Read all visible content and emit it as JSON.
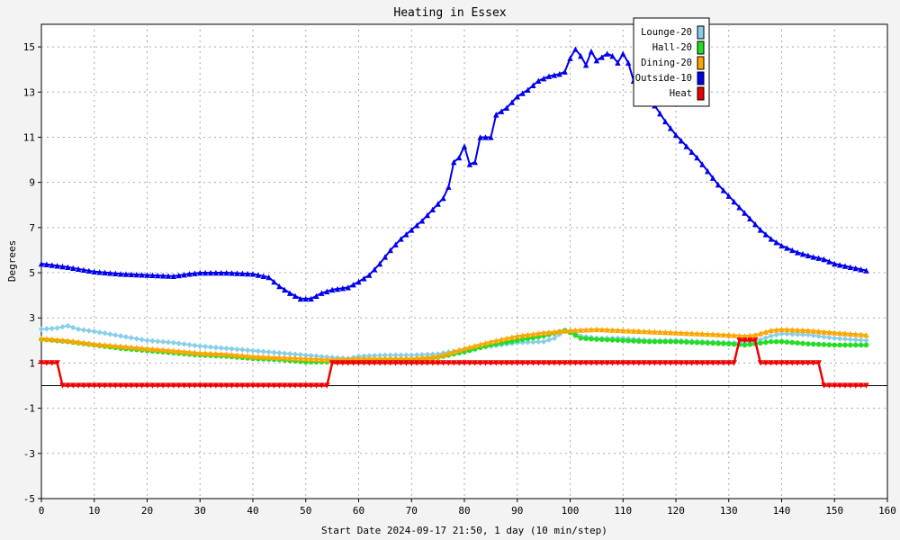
{
  "chart_data": {
    "type": "line",
    "title": "Heating in Essex",
    "xlabel": "Start Date 2024-09-17 21:50, 1 day (10 min/step)",
    "ylabel": "Degrees",
    "xlim": [
      0,
      160
    ],
    "ylim": [
      -5,
      16
    ],
    "x_ticks": [
      0,
      10,
      20,
      30,
      40,
      50,
      60,
      70,
      80,
      90,
      100,
      110,
      120,
      130,
      140,
      150,
      160
    ],
    "y_ticks": [
      -5,
      -3,
      -1,
      1,
      3,
      5,
      7,
      9,
      11,
      13,
      15
    ],
    "grid": true,
    "legend_position": "top-right",
    "series": [
      {
        "name": "Lounge-20",
        "color": "#87ceeb",
        "marker": "diamond",
        "points": [
          [
            0,
            2.5
          ],
          [
            3,
            2.55
          ],
          [
            5,
            2.65
          ],
          [
            7,
            2.5
          ],
          [
            10,
            2.4
          ],
          [
            15,
            2.2
          ],
          [
            20,
            2.0
          ],
          [
            25,
            1.9
          ],
          [
            30,
            1.75
          ],
          [
            35,
            1.65
          ],
          [
            40,
            1.55
          ],
          [
            45,
            1.45
          ],
          [
            50,
            1.35
          ],
          [
            55,
            1.25
          ],
          [
            58,
            1.2
          ],
          [
            60,
            1.3
          ],
          [
            65,
            1.35
          ],
          [
            70,
            1.35
          ],
          [
            75,
            1.4
          ],
          [
            80,
            1.6
          ],
          [
            85,
            1.75
          ],
          [
            90,
            1.9
          ],
          [
            95,
            1.95
          ],
          [
            97,
            2.1
          ],
          [
            99,
            2.45
          ],
          [
            100,
            2.4
          ],
          [
            102,
            2.2
          ],
          [
            105,
            2.1
          ],
          [
            110,
            2.1
          ],
          [
            115,
            2.0
          ],
          [
            120,
            2.0
          ],
          [
            125,
            1.95
          ],
          [
            130,
            1.9
          ],
          [
            133,
            1.9
          ],
          [
            135,
            1.95
          ],
          [
            138,
            2.2
          ],
          [
            140,
            2.3
          ],
          [
            145,
            2.25
          ],
          [
            150,
            2.1
          ],
          [
            156,
            2.0
          ]
        ]
      },
      {
        "name": "Hall-20",
        "color": "#22dd22",
        "marker": "circle",
        "points": [
          [
            0,
            2.05
          ],
          [
            5,
            1.95
          ],
          [
            10,
            1.8
          ],
          [
            15,
            1.65
          ],
          [
            20,
            1.55
          ],
          [
            25,
            1.45
          ],
          [
            30,
            1.35
          ],
          [
            35,
            1.3
          ],
          [
            40,
            1.2
          ],
          [
            45,
            1.15
          ],
          [
            50,
            1.05
          ],
          [
            55,
            1.05
          ],
          [
            60,
            1.1
          ],
          [
            65,
            1.15
          ],
          [
            70,
            1.15
          ],
          [
            75,
            1.25
          ],
          [
            80,
            1.5
          ],
          [
            85,
            1.8
          ],
          [
            90,
            2.0
          ],
          [
            95,
            2.2
          ],
          [
            99,
            2.45
          ],
          [
            100,
            2.35
          ],
          [
            102,
            2.1
          ],
          [
            105,
            2.05
          ],
          [
            110,
            2.0
          ],
          [
            115,
            1.95
          ],
          [
            120,
            1.95
          ],
          [
            125,
            1.9
          ],
          [
            130,
            1.85
          ],
          [
            133,
            1.8
          ],
          [
            135,
            1.85
          ],
          [
            138,
            1.95
          ],
          [
            140,
            1.95
          ],
          [
            145,
            1.85
          ],
          [
            150,
            1.8
          ],
          [
            156,
            1.8
          ]
        ]
      },
      {
        "name": "Dining-20",
        "color": "#ffa500",
        "marker": "triangle-up",
        "points": [
          [
            0,
            2.1
          ],
          [
            5,
            2.0
          ],
          [
            10,
            1.85
          ],
          [
            15,
            1.75
          ],
          [
            20,
            1.65
          ],
          [
            25,
            1.55
          ],
          [
            30,
            1.45
          ],
          [
            35,
            1.4
          ],
          [
            40,
            1.3
          ],
          [
            45,
            1.25
          ],
          [
            50,
            1.2
          ],
          [
            55,
            1.15
          ],
          [
            60,
            1.2
          ],
          [
            65,
            1.2
          ],
          [
            70,
            1.2
          ],
          [
            75,
            1.3
          ],
          [
            80,
            1.65
          ],
          [
            85,
            1.95
          ],
          [
            90,
            2.2
          ],
          [
            95,
            2.35
          ],
          [
            100,
            2.45
          ],
          [
            105,
            2.5
          ],
          [
            110,
            2.45
          ],
          [
            115,
            2.4
          ],
          [
            120,
            2.35
          ],
          [
            125,
            2.3
          ],
          [
            130,
            2.25
          ],
          [
            133,
            2.2
          ],
          [
            135,
            2.25
          ],
          [
            138,
            2.45
          ],
          [
            140,
            2.5
          ],
          [
            145,
            2.45
          ],
          [
            150,
            2.35
          ],
          [
            156,
            2.25
          ]
        ]
      },
      {
        "name": "Outside-10",
        "color": "#0000ee",
        "marker": "triangle-up",
        "points": [
          [
            0,
            5.4
          ],
          [
            5,
            5.25
          ],
          [
            10,
            5.05
          ],
          [
            15,
            4.95
          ],
          [
            20,
            4.9
          ],
          [
            25,
            4.85
          ],
          [
            28,
            4.95
          ],
          [
            30,
            5.0
          ],
          [
            35,
            5.0
          ],
          [
            40,
            4.95
          ],
          [
            43,
            4.8
          ],
          [
            45,
            4.4
          ],
          [
            47,
            4.1
          ],
          [
            49,
            3.85
          ],
          [
            51,
            3.85
          ],
          [
            53,
            4.1
          ],
          [
            55,
            4.25
          ],
          [
            58,
            4.35
          ],
          [
            60,
            4.6
          ],
          [
            62,
            4.9
          ],
          [
            64,
            5.4
          ],
          [
            66,
            6.0
          ],
          [
            68,
            6.5
          ],
          [
            70,
            6.9
          ],
          [
            72,
            7.3
          ],
          [
            74,
            7.8
          ],
          [
            76,
            8.3
          ],
          [
            77,
            8.8
          ],
          [
            78,
            9.9
          ],
          [
            79,
            10.1
          ],
          [
            80,
            10.6
          ],
          [
            81,
            9.8
          ],
          [
            82,
            9.9
          ],
          [
            83,
            11.0
          ],
          [
            85,
            11.0
          ],
          [
            86,
            12.0
          ],
          [
            88,
            12.3
          ],
          [
            90,
            12.8
          ],
          [
            92,
            13.1
          ],
          [
            94,
            13.5
          ],
          [
            96,
            13.7
          ],
          [
            98,
            13.8
          ],
          [
            99,
            13.9
          ],
          [
            100,
            14.5
          ],
          [
            101,
            14.9
          ],
          [
            102,
            14.6
          ],
          [
            103,
            14.2
          ],
          [
            104,
            14.8
          ],
          [
            105,
            14.4
          ],
          [
            107,
            14.7
          ],
          [
            108,
            14.6
          ],
          [
            109,
            14.3
          ],
          [
            110,
            14.7
          ],
          [
            111,
            14.3
          ],
          [
            112,
            13.5
          ],
          [
            114,
            13.0
          ],
          [
            116,
            12.4
          ],
          [
            118,
            11.7
          ],
          [
            120,
            11.1
          ],
          [
            122,
            10.6
          ],
          [
            124,
            10.1
          ],
          [
            126,
            9.5
          ],
          [
            128,
            8.9
          ],
          [
            130,
            8.4
          ],
          [
            132,
            7.9
          ],
          [
            134,
            7.4
          ],
          [
            136,
            6.9
          ],
          [
            138,
            6.5
          ],
          [
            140,
            6.2
          ],
          [
            143,
            5.9
          ],
          [
            146,
            5.7
          ],
          [
            148,
            5.6
          ],
          [
            150,
            5.4
          ],
          [
            153,
            5.25
          ],
          [
            156,
            5.1
          ]
        ]
      },
      {
        "name": "Heat",
        "color": "#ee0000",
        "marker": "triangle-down",
        "points": [
          [
            0,
            1
          ],
          [
            3,
            1
          ],
          [
            4,
            0
          ],
          [
            54,
            0
          ],
          [
            55,
            1
          ],
          [
            131,
            1
          ],
          [
            132,
            2
          ],
          [
            135,
            2
          ],
          [
            136,
            1
          ],
          [
            147,
            1
          ],
          [
            148,
            0
          ],
          [
            156,
            0
          ]
        ]
      }
    ]
  }
}
